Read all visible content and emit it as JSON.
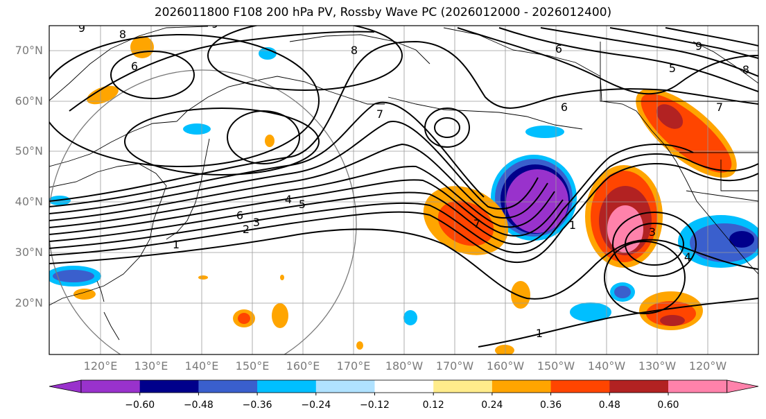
{
  "title": "2026011800 F108 200 hPa PV, Rossby Wave PC (2026012000 - 2026012400)",
  "lat_labels": [
    "70°N",
    "60°N",
    "50°N",
    "40°N",
    "30°N",
    "20°N"
  ],
  "lon_labels": [
    "120°E",
    "130°E",
    "140°E",
    "150°E",
    "160°E",
    "170°E",
    "180°W",
    "170°W",
    "160°W",
    "150°W",
    "140°W",
    "130°W",
    "120°W"
  ],
  "colorbar": {
    "colors": [
      "#9932cc",
      "#00008b",
      "#3a5fcd",
      "#00bfff",
      "#b0e2ff",
      "#ffffff",
      "#ffec8b",
      "#ffa500",
      "#ff4500",
      "#b22222",
      "#ff82ab"
    ],
    "ticks": [
      "−0.60",
      "−0.48",
      "−0.36",
      "−0.24",
      "−0.12",
      "0.12",
      "0.24",
      "0.36",
      "0.48",
      "0.60"
    ]
  },
  "pv_contour_labels": [
    "9",
    "8",
    "6",
    "9",
    "8",
    "7",
    "6",
    "5",
    "9",
    "8",
    "7",
    "6",
    "5",
    "4",
    "3",
    "2",
    "1",
    "7",
    "4",
    "3",
    "1",
    "1",
    "6"
  ]
}
